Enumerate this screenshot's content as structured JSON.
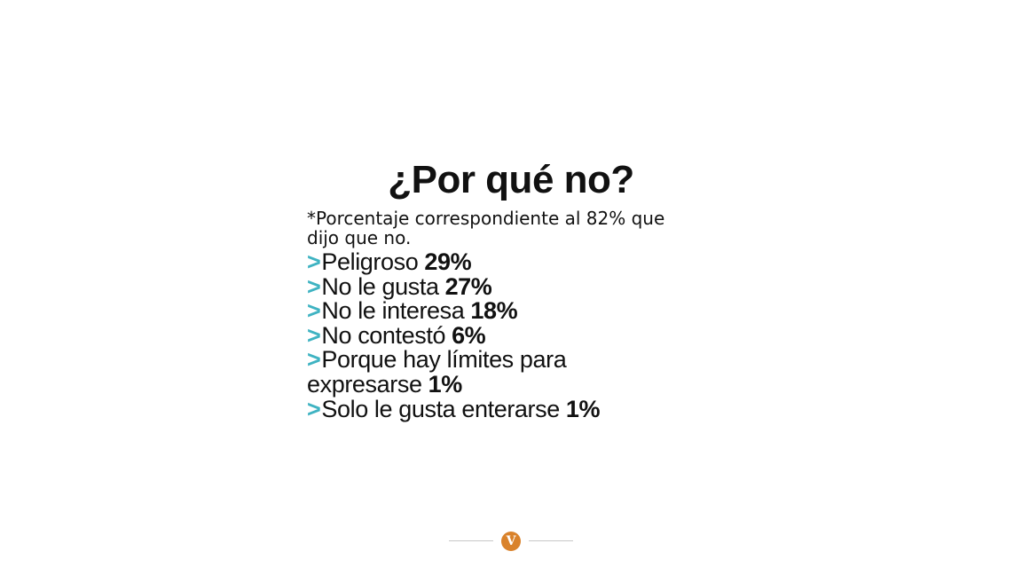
{
  "title": "¿Por qué no?",
  "footnote": "*Porcentaje correspondiente al 82% que dijo que no.",
  "reasons": [
    {
      "marker": ">",
      "label": "Peligroso",
      "percent": "29%"
    },
    {
      "marker": ">",
      "label": "No le gusta",
      "percent": "27%"
    },
    {
      "marker": ">",
      "label": "No le interesa",
      "percent": "18%"
    },
    {
      "marker": ">",
      "label": "No contestó",
      "percent": "6%"
    },
    {
      "marker": ">",
      "label": "Porque hay límites para expresarse",
      "percent": "1%"
    },
    {
      "marker": ">",
      "label": "Solo le gusta enterarse",
      "percent": "1%"
    }
  ],
  "footer": {
    "logo_letter": "V",
    "logo_icon": "v-logo-icon"
  },
  "colors": {
    "accent": "#3fb3c2",
    "brand": "#d9822b",
    "text": "#111111",
    "rule": "#c7c7c7"
  }
}
